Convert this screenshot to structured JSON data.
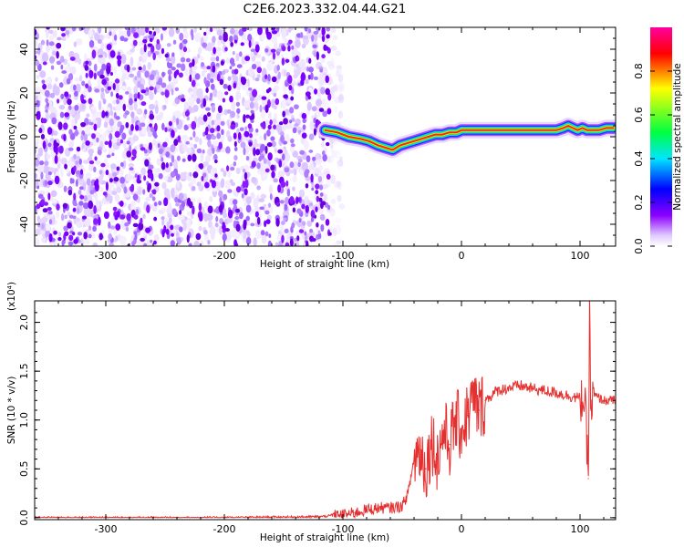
{
  "title": "C2E6.2023.332.04.44.G21",
  "chart_data": [
    {
      "type": "heatmap",
      "xlabel": "Height of straight line (km)",
      "ylabel": "Frequency (Hz)",
      "xlim": [
        -360,
        130
      ],
      "ylim": [
        -50,
        50
      ],
      "xticks": [
        -300,
        -200,
        -100,
        0,
        100
      ],
      "yticks": [
        40,
        20,
        0,
        -20,
        -40
      ],
      "noise_region_x": [
        -360,
        -110
      ],
      "signal_trace": {
        "name": "",
        "x": [
          -115,
          -105,
          -95,
          -85,
          -78,
          -70,
          -64,
          -58,
          -52,
          -46,
          -40,
          -34,
          -28,
          -22,
          -16,
          -10,
          -4,
          0,
          10,
          20,
          30,
          40,
          50,
          60,
          70,
          80,
          86,
          90,
          94,
          98,
          102,
          106,
          110,
          116,
          122,
          128
        ],
        "y": [
          3,
          2,
          0,
          -1,
          -2,
          -4,
          -5,
          -6,
          -4,
          -3,
          -2,
          -1,
          0,
          1,
          1,
          2,
          2,
          3,
          3,
          3,
          3,
          3,
          3,
          3,
          3,
          3,
          4,
          5,
          4,
          3,
          4,
          3,
          3,
          3,
          4,
          4
        ]
      },
      "colorbar": {
        "label": "Normalized spectral amplitude",
        "range": [
          0.0,
          1.0
        ],
        "ticks": [
          "0.0",
          "0.2",
          "0.4",
          "0.6",
          "0.8"
        ],
        "colormap": [
          "#ffffff",
          "#8c00ff",
          "#0000ff",
          "#00e5ff",
          "#00ff40",
          "#ffff00",
          "#ff0000",
          "#ff00a0"
        ]
      }
    },
    {
      "type": "line",
      "xlabel": "Height of straight line (km)",
      "ylabel": "SNR (10 * v/v)",
      "y_scale_label": "(x10⁴)",
      "xlim": [
        -360,
        130
      ],
      "ylim": [
        -0.02,
        2.22
      ],
      "xticks": [
        -300,
        -200,
        -100,
        0,
        100
      ],
      "yticks": [
        "0.0",
        "0.5",
        "1.0",
        "1.5",
        "2.0"
      ],
      "series": [
        {
          "name": "",
          "color": "#e53030",
          "x": [
            -360,
            -300,
            -200,
            -120,
            -100,
            -90,
            -80,
            -70,
            -60,
            -50,
            -45,
            -40,
            -35,
            -30,
            -25,
            -20,
            -15,
            -10,
            -5,
            0,
            5,
            10,
            15,
            20,
            30,
            40,
            50,
            60,
            70,
            80,
            90,
            100,
            104,
            107,
            108,
            109,
            112,
            120,
            130
          ],
          "y": [
            0.0,
            0.0,
            0.0,
            0.01,
            0.03,
            0.05,
            0.08,
            0.1,
            0.1,
            0.12,
            0.25,
            0.6,
            0.7,
            0.5,
            0.8,
            0.6,
            0.9,
            0.75,
            1.0,
            0.9,
            1.05,
            1.2,
            1.1,
            1.2,
            1.3,
            1.33,
            1.35,
            1.32,
            1.3,
            1.28,
            1.25,
            1.22,
            1.2,
            0.4,
            2.2,
            1.1,
            1.25,
            1.2,
            1.2
          ]
        }
      ]
    }
  ]
}
